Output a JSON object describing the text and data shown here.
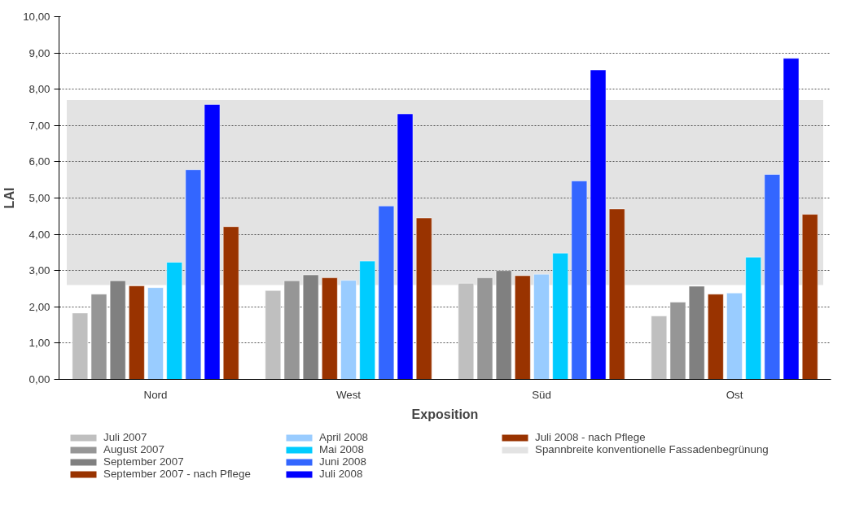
{
  "chart_data": {
    "type": "bar",
    "xlabel": "Exposition",
    "ylabel": "LAI",
    "categories": [
      "Nord",
      "West",
      "Süd",
      "Ost"
    ],
    "series": [
      {
        "name": "Juli 2007",
        "color": "#bfbfbf",
        "values": [
          1.83,
          2.45,
          2.65,
          1.75
        ]
      },
      {
        "name": "August 2007",
        "color": "#969696",
        "values": [
          2.35,
          2.72,
          2.8,
          2.13
        ]
      },
      {
        "name": "September 2007",
        "color": "#808080",
        "values": [
          2.72,
          2.88,
          3.0,
          2.57
        ]
      },
      {
        "name": "September 2007 - nach Pflege",
        "color": "#993300",
        "values": [
          2.58,
          2.8,
          2.86,
          2.35
        ]
      },
      {
        "name": "April 2008",
        "color": "#99ccff",
        "values": [
          2.53,
          2.73,
          2.9,
          2.38
        ]
      },
      {
        "name": "Mai 2008",
        "color": "#00ccff",
        "values": [
          3.23,
          3.26,
          3.48,
          3.37
        ]
      },
      {
        "name": "Juni 2008",
        "color": "#3366ff",
        "values": [
          5.78,
          4.78,
          5.47,
          5.65
        ]
      },
      {
        "name": "Juli 2008",
        "color": "#0000ff",
        "values": [
          7.58,
          7.32,
          8.53,
          8.85
        ]
      },
      {
        "name": "Juli 2008 - nach Pflege",
        "color": "#993300",
        "values": [
          4.21,
          4.45,
          4.7,
          4.55
        ]
      }
    ],
    "bands": [
      {
        "axis": "y",
        "from": 2.6,
        "to": 7.7,
        "label": "Spannbreite konventionelle Fassadenbegrünung",
        "color": "#e3e3e3"
      }
    ],
    "ylim": [
      0,
      10
    ],
    "yticks": [
      {
        "value": 0,
        "label": "0,00"
      },
      {
        "value": 1,
        "label": "1,00"
      },
      {
        "value": 2,
        "label": "2,00"
      },
      {
        "value": 3,
        "label": "3,00"
      },
      {
        "value": 4,
        "label": "4,00"
      },
      {
        "value": 5,
        "label": "5,00"
      },
      {
        "value": 6,
        "label": "6,00"
      },
      {
        "value": 7,
        "label": "7,00"
      },
      {
        "value": 8,
        "label": "8,00"
      },
      {
        "value": 9,
        "label": "9,00"
      },
      {
        "value": 10,
        "label": "10,00"
      }
    ],
    "grid": "y",
    "legend": "bottom"
  }
}
